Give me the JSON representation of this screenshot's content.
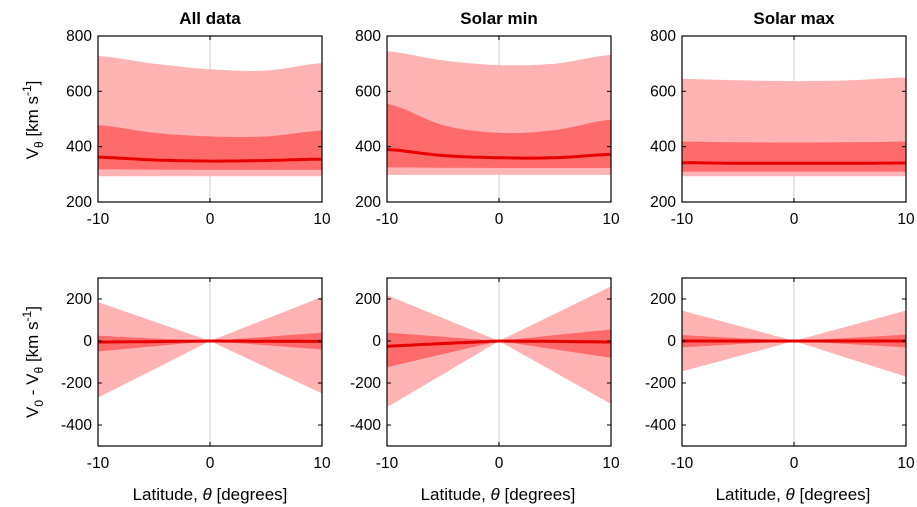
{
  "colors": {
    "band_outer": "#ffb3b3",
    "band_inner": "#ff6b6b",
    "median": "#e60000",
    "zero_line": "#e6e6e6",
    "axis": "#000000"
  },
  "axis_label_text": {
    "top_ylabel_main": "V",
    "top_ylabel_sub": "θ",
    "top_ylabel_unit": " [km s",
    "top_ylabel_sup": "-1",
    "top_ylabel_end": "]",
    "bottom_ylabel_a": "V",
    "bottom_ylabel_a_sub": "0",
    "bottom_ylabel_mid": " - V",
    "bottom_ylabel_b_sub": "θ",
    "bottom_ylabel_unit": " [km s",
    "bottom_ylabel_sup": "-1",
    "bottom_ylabel_end": "]",
    "xlabel_start": "Latitude, ",
    "xlabel_theta": "θ",
    "xlabel_end": " [degrees]"
  },
  "chart_data": [
    {
      "type": "area",
      "panel": "top-left",
      "title": "All data",
      "xlim": [
        -10,
        10
      ],
      "ylim": [
        200,
        800
      ],
      "xticks": [
        "-10",
        "0",
        "10"
      ],
      "yticks": [
        "200",
        "400",
        "600",
        "800"
      ],
      "x": [
        -10,
        -5,
        0,
        5,
        10
      ],
      "series": [
        {
          "role": "outer_band",
          "upper": [
            728,
            700,
            680,
            675,
            702
          ],
          "lower": [
            293,
            293,
            293,
            293,
            293
          ]
        },
        {
          "role": "inner_band",
          "upper": [
            478,
            450,
            437,
            437,
            458
          ],
          "lower": [
            318,
            317,
            316,
            316,
            316
          ]
        },
        {
          "role": "median",
          "values": [
            362,
            352,
            348,
            350,
            355
          ]
        }
      ]
    },
    {
      "type": "area",
      "panel": "top-middle",
      "title": "Solar min",
      "xlim": [
        -10,
        10
      ],
      "ylim": [
        200,
        800
      ],
      "xticks": [
        "-10",
        "0",
        "10"
      ],
      "yticks": [
        "200",
        "400",
        "600",
        "800"
      ],
      "x": [
        -10,
        -5,
        0,
        5,
        10
      ],
      "series": [
        {
          "role": "outer_band",
          "upper": [
            745,
            712,
            695,
            700,
            732
          ],
          "lower": [
            298,
            298,
            298,
            298,
            298
          ]
        },
        {
          "role": "inner_band",
          "upper": [
            555,
            478,
            450,
            460,
            498
          ],
          "lower": [
            325,
            324,
            323,
            323,
            323
          ]
        },
        {
          "role": "median",
          "values": [
            390,
            368,
            360,
            360,
            372
          ]
        }
      ]
    },
    {
      "type": "area",
      "panel": "top-right",
      "title": "Solar max",
      "xlim": [
        -10,
        10
      ],
      "ylim": [
        200,
        800
      ],
      "xticks": [
        "-10",
        "0",
        "10"
      ],
      "yticks": [
        "200",
        "400",
        "600",
        "800"
      ],
      "x": [
        -10,
        -5,
        0,
        5,
        10
      ],
      "series": [
        {
          "role": "outer_band",
          "upper": [
            645,
            640,
            637,
            640,
            650
          ],
          "lower": [
            293,
            293,
            293,
            293,
            293
          ]
        },
        {
          "role": "inner_band",
          "upper": [
            418,
            416,
            415,
            416,
            418
          ],
          "lower": [
            310,
            310,
            310,
            310,
            310
          ]
        },
        {
          "role": "median",
          "values": [
            342,
            340,
            340,
            340,
            341
          ]
        }
      ]
    },
    {
      "type": "area",
      "panel": "bottom-left",
      "title": "",
      "xlim": [
        -10,
        10
      ],
      "ylim": [
        -500,
        300
      ],
      "xticks": [
        "-10",
        "0",
        "10"
      ],
      "yticks": [
        "-400",
        "-200",
        "0",
        "200"
      ],
      "x": [
        -10,
        -5,
        0,
        5,
        10
      ],
      "series": [
        {
          "role": "outer_band",
          "upper": [
            185,
            93,
            0,
            105,
            210
          ],
          "lower": [
            -270,
            -135,
            0,
            -125,
            -250
          ]
        },
        {
          "role": "inner_band",
          "upper": [
            25,
            12,
            0,
            20,
            40
          ],
          "lower": [
            -50,
            -25,
            0,
            -20,
            -40
          ]
        },
        {
          "role": "median",
          "values": [
            -5,
            -3,
            0,
            -1,
            -2
          ]
        }
      ]
    },
    {
      "type": "area",
      "panel": "bottom-middle",
      "title": "",
      "xlim": [
        -10,
        10
      ],
      "ylim": [
        -500,
        300
      ],
      "xticks": [
        "-10",
        "0",
        "10"
      ],
      "yticks": [
        "-400",
        "-200",
        "0",
        "200"
      ],
      "x": [
        -10,
        -5,
        0,
        5,
        10
      ],
      "series": [
        {
          "role": "outer_band",
          "upper": [
            218,
            109,
            0,
            130,
            260
          ],
          "lower": [
            -315,
            -158,
            0,
            -150,
            -300
          ]
        },
        {
          "role": "inner_band",
          "upper": [
            40,
            20,
            0,
            28,
            55
          ],
          "lower": [
            -125,
            -62,
            0,
            -40,
            -80
          ]
        },
        {
          "role": "median",
          "values": [
            -25,
            -12,
            0,
            -2,
            -5
          ]
        }
      ]
    },
    {
      "type": "area",
      "panel": "bottom-right",
      "title": "",
      "xlim": [
        -10,
        10
      ],
      "ylim": [
        -500,
        300
      ],
      "xticks": [
        "-10",
        "0",
        "10"
      ],
      "yticks": [
        "-400",
        "-200",
        "0",
        "200"
      ],
      "x": [
        -10,
        -5,
        0,
        5,
        10
      ],
      "series": [
        {
          "role": "outer_band",
          "upper": [
            145,
            73,
            0,
            73,
            145
          ],
          "lower": [
            -145,
            -73,
            0,
            -85,
            -170
          ]
        },
        {
          "role": "inner_band",
          "upper": [
            28,
            14,
            0,
            15,
            30
          ],
          "lower": [
            -30,
            -15,
            0,
            -15,
            -30
          ]
        },
        {
          "role": "median",
          "values": [
            0,
            0,
            0,
            0,
            0
          ]
        }
      ]
    }
  ]
}
